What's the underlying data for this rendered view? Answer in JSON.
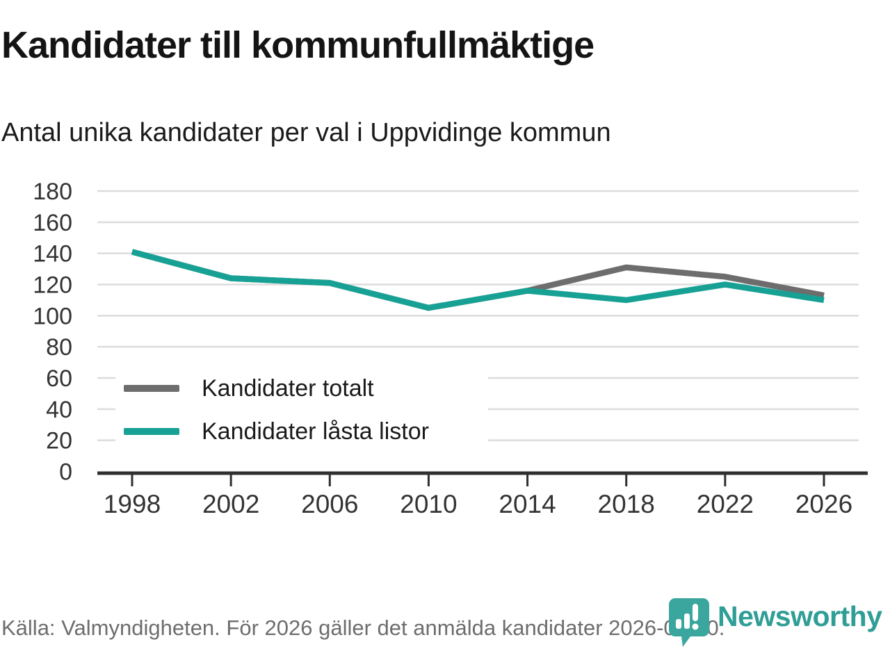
{
  "header": {
    "title": "Kandidater till kommunfullmäktige",
    "subtitle": "Antal unika kandidater per val i Uppvidinge kommun"
  },
  "chart_data": {
    "type": "line",
    "categories": [
      "1998",
      "2002",
      "2006",
      "2010",
      "2014",
      "2018",
      "2022",
      "2026"
    ],
    "series": [
      {
        "name": "Kandidater totalt",
        "color": "#6d6d6d",
        "values": [
          141,
          124,
          121,
          105,
          116,
          131,
          125,
          113
        ]
      },
      {
        "name": "Kandidater låsta listor",
        "color": "#17a195",
        "values": [
          141,
          124,
          121,
          105,
          116,
          110,
          120,
          110
        ]
      }
    ],
    "title": "Kandidater till kommunfullmäktige",
    "subtitle": "Antal unika kandidater per val i Uppvidinge kommun",
    "xlabel": "",
    "ylabel": "",
    "ylim": [
      0,
      180
    ],
    "ytick_step": 20,
    "grid": true,
    "legend_position": "inside-left-middle"
  },
  "footer": {
    "source": "Källa: Valmyndigheten. För 2026 gäller det anmälda kandidater 2026-04-10."
  },
  "logo": {
    "icon": "newsworthy-bubble-barchart-icon",
    "wordmark": "Newsworthy"
  },
  "colors": {
    "series_total_gray": "#6d6d6d",
    "series_locked_teal": "#17a195",
    "gridline": "#dcdcdc",
    "axis": "#2f2f2f",
    "tick_label": "#333333",
    "footer_text": "#6d6d6d",
    "logo_icon_teal": "#3aa69d",
    "logo_wordmark_teal": "#2f9e96"
  }
}
